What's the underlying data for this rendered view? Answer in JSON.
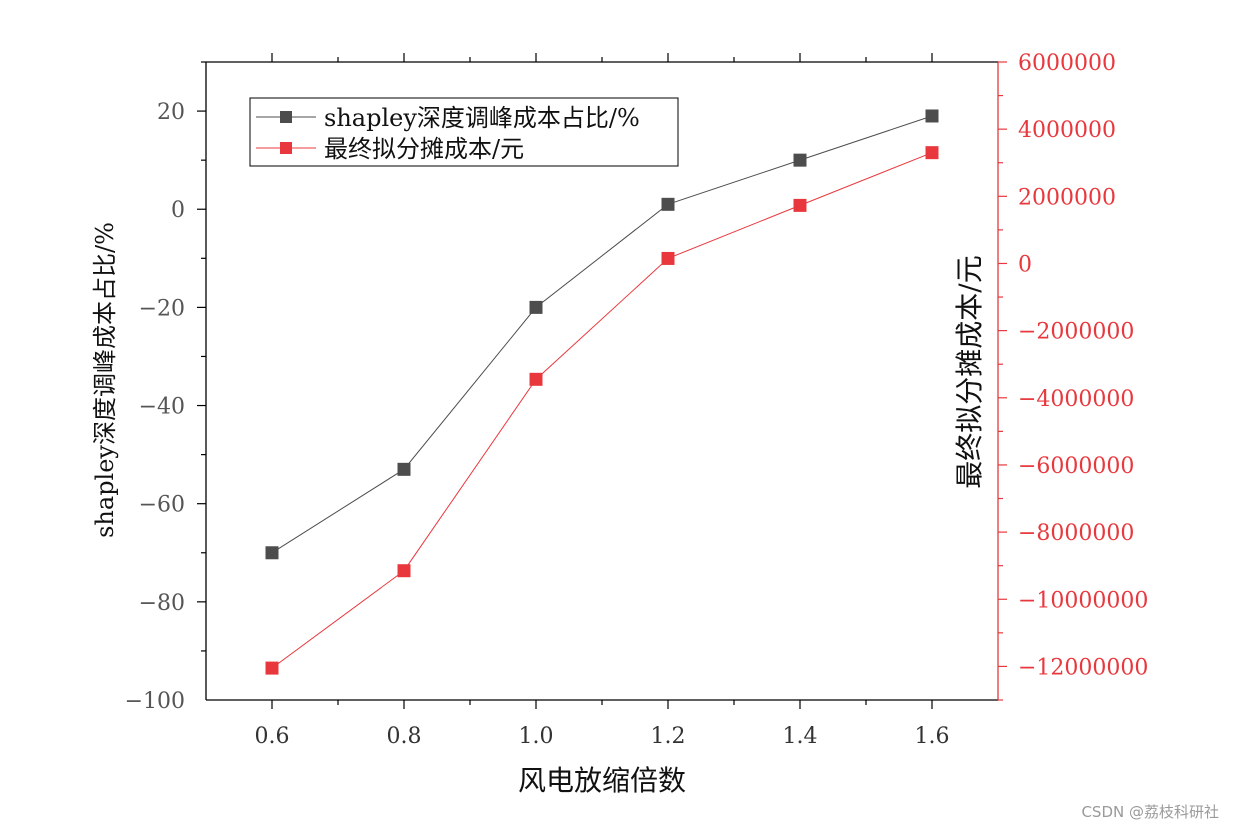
{
  "chart_data": {
    "type": "line",
    "x": [
      0.6,
      0.8,
      1.0,
      1.2,
      1.4,
      1.6
    ],
    "xlabel": "风电放缩倍数",
    "xlim": [
      0.5,
      1.7
    ],
    "x_ticks": [
      "0.6",
      "0.8",
      "1.0",
      "1.2",
      "1.4",
      "1.6"
    ],
    "ylabel_left": "shapley深度调峰成本占比/%",
    "ylim_left": [
      -100,
      30
    ],
    "y_ticks_left": [
      "20",
      "0",
      "−20",
      "−40",
      "−60",
      "−80",
      "−100"
    ],
    "ylabel_right": "最终拟分摊成本/元",
    "ylim_right": [
      -13000000,
      6000000
    ],
    "y_ticks_right": [
      "6000000",
      "4000000",
      "2000000",
      "0",
      "−2000000",
      "−4000000",
      "−6000000",
      "−8000000",
      "−10000000",
      "−12000000"
    ],
    "series": [
      {
        "name": "shapley深度调峰成本占比/%",
        "axis": "left",
        "color": "#4d4d4d",
        "values": [
          -70,
          -53,
          -20,
          1,
          10,
          19
        ]
      },
      {
        "name": "最终拟分摊成本/元",
        "axis": "right",
        "color": "#e8383d",
        "values": [
          -12050000,
          -9150000,
          -3450000,
          150000,
          1730000,
          3300000
        ]
      }
    ],
    "legend_position": "top-left",
    "grid": false
  },
  "watermark": "CSDN @荔枝科研社"
}
